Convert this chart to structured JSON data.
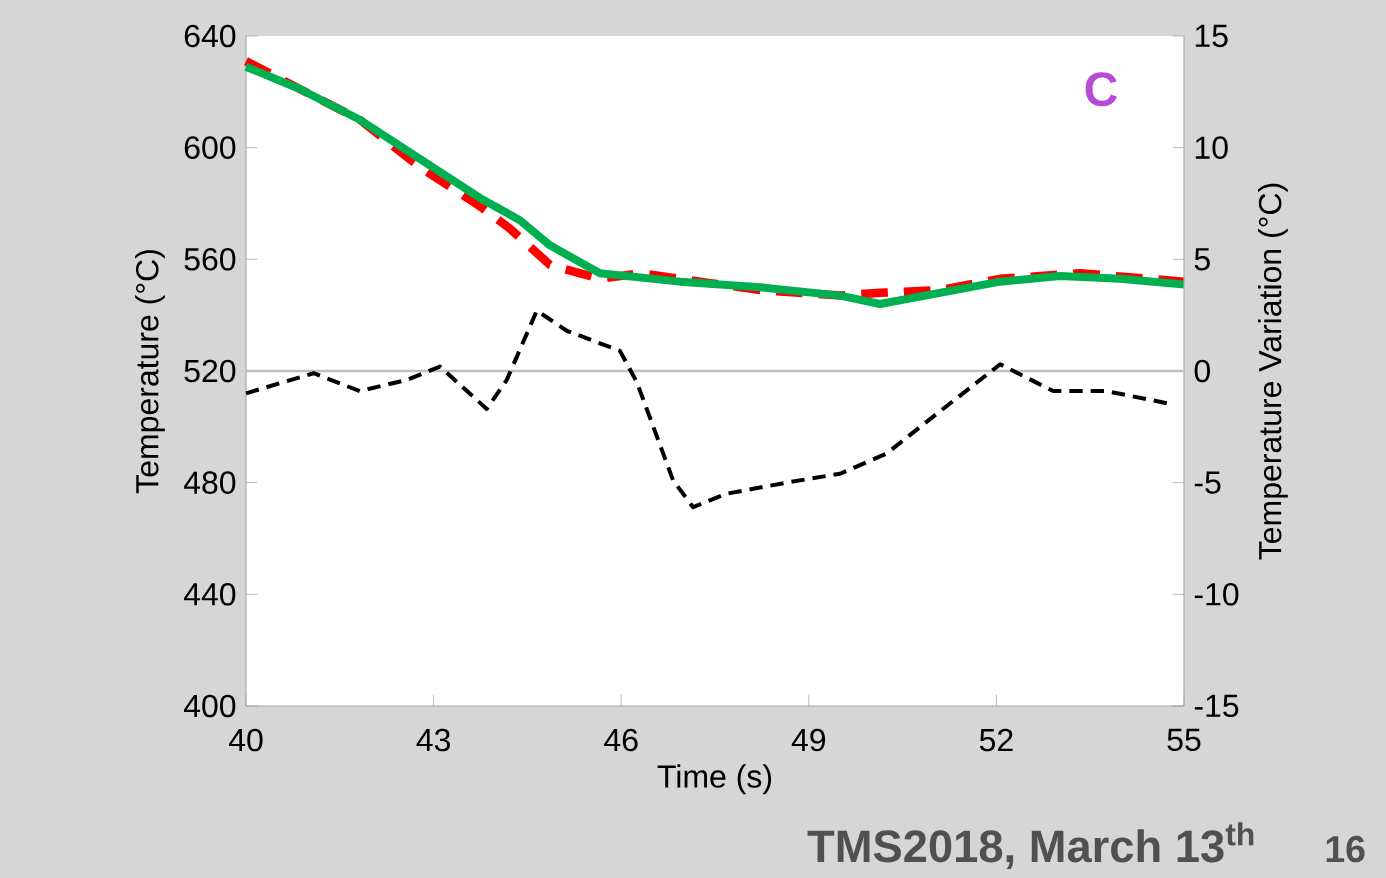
{
  "chart_data": {
    "type": "line",
    "xlabel": "Time (s)",
    "ylabel": "Temperature (°C)",
    "y2label": "Temperature Variation (°C)",
    "annotations": [
      "C",
      "TMS2018, March 13$^{th}$",
      "16"
    ],
    "xlim": [
      40,
      55
    ],
    "xticks": [
      40,
      43,
      46,
      49,
      52,
      55
    ],
    "ylim": [
      400,
      640
    ],
    "yticks": [
      400,
      440,
      480,
      520,
      560,
      600,
      640
    ],
    "y2lim": [
      -15,
      15
    ],
    "y2ticks": [
      -15,
      -10,
      -5,
      0,
      5,
      10,
      15
    ],
    "marker": "none",
    "ref_lines": [
      {
        "axis": "y2",
        "value": 0,
        "color": "#bfbfbf"
      }
    ],
    "series": [
      {
        "color": "#ff0000",
        "line_style": "dashed",
        "x": [
          40,
          40.86,
          41.82,
          42.78,
          43.74,
          44.22,
          44.86,
          45.66,
          46.3,
          47.26,
          48.22,
          49.5,
          50.14,
          51.1,
          52.06,
          53.34,
          55
        ],
        "values": [
          631,
          621,
          610,
          593,
          579,
          571,
          558,
          553,
          555,
          552,
          549,
          547,
          548,
          549,
          553,
          555,
          552
        ]
      },
      {
        "color": "#00b050",
        "line_style": "solid",
        "x": [
          40,
          40.86,
          41.82,
          42.78,
          43.74,
          44.38,
          44.86,
          45.66,
          46.94,
          48.22,
          49.5,
          50.14,
          51.1,
          52.06,
          53.02,
          53.98,
          55
        ],
        "values": [
          629,
          621,
          610,
          596,
          582,
          574,
          565,
          555,
          552,
          550,
          547,
          544,
          548,
          552,
          554,
          553,
          551
        ]
      },
      {
        "color": "#000000",
        "line_style": "dashed",
        "axis": "y2",
        "x": [
          40,
          41.08,
          41.82,
          42.57,
          43.1,
          43.85,
          44.17,
          44.65,
          45.13,
          45.98,
          46.25,
          46.83,
          47.15,
          47.68,
          48.64,
          49.5,
          50.24,
          51.1,
          52.06,
          52.91,
          53.76,
          54.83
        ],
        "values": [
          -1.0,
          -0.1,
          -0.9,
          -0.4,
          0.2,
          -1.7,
          -0.4,
          2.7,
          1.8,
          0.9,
          -0.5,
          -4.9,
          -6.1,
          -5.5,
          -5.0,
          -4.6,
          -3.7,
          -1.8,
          0.3,
          -0.9,
          -0.9,
          -1.5
        ]
      }
    ]
  }
}
